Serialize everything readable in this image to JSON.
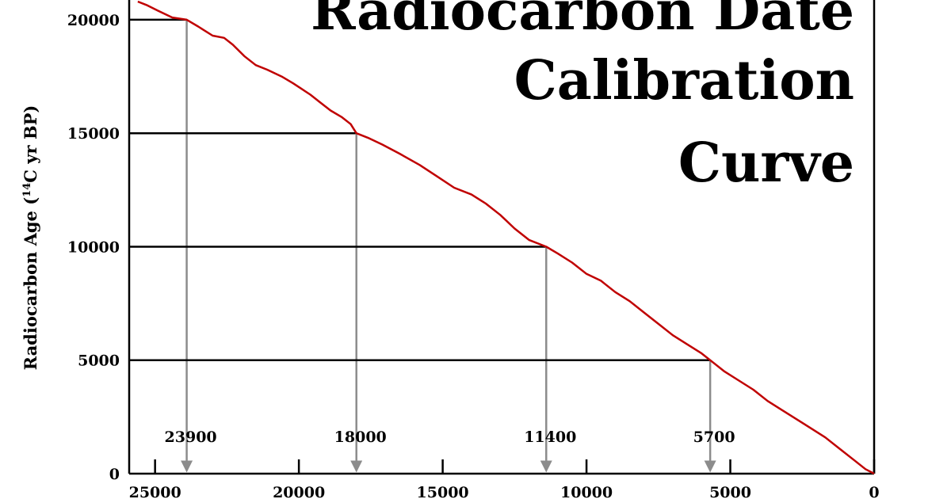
{
  "chart_data": {
    "type": "line",
    "title_lines": [
      "Radiocarbon Date",
      "Calibration",
      "Curve"
    ],
    "ylabel_parts": [
      "Radiocarbon Age (",
      "14",
      "C yr BP)"
    ],
    "xlabel": "",
    "x_reversed": true,
    "xlim": [
      25900,
      0
    ],
    "ylim": [
      0,
      20800
    ],
    "x_ticks": [
      25000,
      20000,
      15000,
      10000,
      5000,
      0
    ],
    "y_ticks": [
      0,
      5000,
      10000,
      15000,
      20000
    ],
    "grid": false,
    "series": [
      {
        "color": "#c00000",
        "points": [
          [
            25600,
            20800
          ],
          [
            25300,
            20650
          ],
          [
            24900,
            20400
          ],
          [
            24400,
            20100
          ],
          [
            23900,
            20000
          ],
          [
            23500,
            19700
          ],
          [
            23000,
            19300
          ],
          [
            22600,
            19200
          ],
          [
            22300,
            18900
          ],
          [
            21900,
            18400
          ],
          [
            21500,
            18000
          ],
          [
            21100,
            17800
          ],
          [
            20600,
            17500
          ],
          [
            20200,
            17200
          ],
          [
            19600,
            16700
          ],
          [
            19300,
            16400
          ],
          [
            18900,
            16000
          ],
          [
            18500,
            15700
          ],
          [
            18200,
            15400
          ],
          [
            18000,
            15000
          ],
          [
            17600,
            14800
          ],
          [
            17100,
            14500
          ],
          [
            16500,
            14100
          ],
          [
            15800,
            13600
          ],
          [
            15200,
            13100
          ],
          [
            14600,
            12600
          ],
          [
            14000,
            12300
          ],
          [
            13500,
            11900
          ],
          [
            13000,
            11400
          ],
          [
            12500,
            10800
          ],
          [
            12000,
            10300
          ],
          [
            11400,
            10000
          ],
          [
            11000,
            9700
          ],
          [
            10500,
            9300
          ],
          [
            10000,
            8800
          ],
          [
            9500,
            8500
          ],
          [
            9000,
            8000
          ],
          [
            8500,
            7600
          ],
          [
            8000,
            7100
          ],
          [
            7500,
            6600
          ],
          [
            7000,
            6100
          ],
          [
            6500,
            5700
          ],
          [
            6000,
            5300
          ],
          [
            5700,
            5000
          ],
          [
            5200,
            4500
          ],
          [
            4700,
            4100
          ],
          [
            4200,
            3700
          ],
          [
            3700,
            3200
          ],
          [
            3200,
            2800
          ],
          [
            2700,
            2400
          ],
          [
            2200,
            2000
          ],
          [
            1700,
            1600
          ],
          [
            1200,
            1100
          ],
          [
            700,
            600
          ],
          [
            300,
            200
          ],
          [
            0,
            0
          ]
        ]
      }
    ],
    "calibrations": [
      {
        "radiocarbon_age": 20000,
        "calendar_age": 23900,
        "label": "23900"
      },
      {
        "radiocarbon_age": 15000,
        "calendar_age": 18000,
        "label": "18000"
      },
      {
        "radiocarbon_age": 10000,
        "calendar_age": 11400,
        "label": "11400"
      },
      {
        "radiocarbon_age": 5000,
        "calendar_age": 5700,
        "label": "5700"
      }
    ],
    "reference_line_color": "#000000",
    "arrow_color": "#8c8c8c"
  }
}
